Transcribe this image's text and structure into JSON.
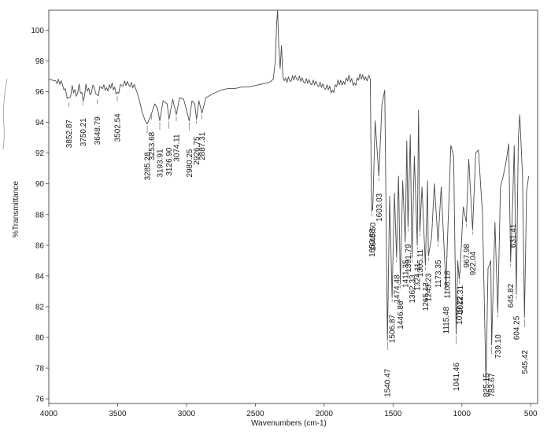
{
  "chart_data": {
    "type": "line",
    "xlabel": "Wavenumbers (cm-1)",
    "ylabel": "%Transmittance",
    "xlim": [
      4000,
      450
    ],
    "ylim": [
      75.7,
      101.3
    ],
    "x_reversed": true,
    "xticks": [
      4000,
      3500,
      3000,
      2500,
      2000,
      1500,
      1000,
      500
    ],
    "xtick_labels": [
      "4000",
      "3500",
      "3000",
      "2500",
      "2000",
      "1500",
      "1000",
      "500"
    ],
    "yticks": [
      76,
      78,
      80,
      82,
      84,
      86,
      88,
      90,
      92,
      94,
      96,
      98,
      100
    ],
    "ytick_labels": [
      "76",
      "78",
      "80",
      "82",
      "84",
      "86",
      "88",
      "90",
      "92",
      "94",
      "96",
      "98",
      "100"
    ],
    "grid": false,
    "series": [
      {
        "points": [
          [
            4000,
            96.8
          ],
          [
            3950,
            96.7
          ],
          [
            3900,
            96.5
          ],
          [
            3880,
            96.0
          ],
          [
            3852.87,
            95.4
          ],
          [
            3830,
            96.2
          ],
          [
            3800,
            95.8
          ],
          [
            3780,
            96.3
          ],
          [
            3750.21,
            95.5
          ],
          [
            3730,
            96.3
          ],
          [
            3700,
            95.9
          ],
          [
            3670,
            96.4
          ],
          [
            3648.79,
            95.6
          ],
          [
            3620,
            96.4
          ],
          [
            3580,
            96.1
          ],
          [
            3540,
            96.4
          ],
          [
            3502.54,
            95.8
          ],
          [
            3470,
            96.5
          ],
          [
            3420,
            96.5
          ],
          [
            3380,
            96.3
          ],
          [
            3350,
            95.7
          ],
          [
            3320,
            94.6
          ],
          [
            3300,
            94.1
          ],
          [
            3285.28,
            93.9
          ],
          [
            3270,
            94.2
          ],
          [
            3253.68,
            94.6
          ],
          [
            3230,
            95.2
          ],
          [
            3210,
            94.9
          ],
          [
            3193.91,
            94.1
          ],
          [
            3170,
            95.4
          ],
          [
            3140,
            95.2
          ],
          [
            3126.9,
            94.2
          ],
          [
            3100,
            95.5
          ],
          [
            3074.11,
            94.5
          ],
          [
            3050,
            95.6
          ],
          [
            3020,
            95.5
          ],
          [
            2980.25,
            94.1
          ],
          [
            2960,
            95.4
          ],
          [
            2940,
            95.2
          ],
          [
            2926.75,
            94.2
          ],
          [
            2910,
            95.4
          ],
          [
            2887.31,
            94.6
          ],
          [
            2860,
            95.6
          ],
          [
            2800,
            95.9
          ],
          [
            2750,
            96.1
          ],
          [
            2700,
            96.2
          ],
          [
            2650,
            96.2
          ],
          [
            2600,
            96.3
          ],
          [
            2550,
            96.3
          ],
          [
            2500,
            96.4
          ],
          [
            2450,
            96.5
          ],
          [
            2400,
            96.6
          ],
          [
            2370,
            96.8
          ],
          [
            2355,
            98.0
          ],
          [
            2345,
            100.5
          ],
          [
            2338,
            101.3
          ],
          [
            2330,
            99.0
          ],
          [
            2320,
            97.5
          ],
          [
            2310,
            99.0
          ],
          [
            2300,
            97.0
          ],
          [
            2280,
            96.7
          ],
          [
            2250,
            96.8
          ],
          [
            2200,
            96.9
          ],
          [
            2150,
            96.7
          ],
          [
            2100,
            96.6
          ],
          [
            2050,
            96.5
          ],
          [
            2000,
            96.3
          ],
          [
            1960,
            96.2
          ],
          [
            1940,
            95.9
          ],
          [
            1900,
            96.6
          ],
          [
            1860,
            96.5
          ],
          [
            1820,
            96.9
          ],
          [
            1780,
            96.4
          ],
          [
            1740,
            97.0
          ],
          [
            1700,
            96.8
          ],
          [
            1665,
            96.9
          ],
          [
            1658,
            89.6
          ],
          [
            1653.88,
            88.2
          ],
          [
            1646.5,
            88.6
          ],
          [
            1630,
            94.1
          ],
          [
            1603.03,
            90.5
          ],
          [
            1580,
            95.2
          ],
          [
            1560,
            96.1
          ],
          [
            1540.47,
            79.8
          ],
          [
            1525,
            89.2
          ],
          [
            1506.87,
            82.6
          ],
          [
            1490,
            89.4
          ],
          [
            1474.48,
            85.2
          ],
          [
            1460,
            90.5
          ],
          [
            1446.86,
            83.5
          ],
          [
            1430,
            90.2
          ],
          [
            1411.35,
            86.2
          ],
          [
            1400,
            92.8
          ],
          [
            1391.79,
            87.2
          ],
          [
            1375,
            93.2
          ],
          [
            1362.33,
            85.2
          ],
          [
            1345,
            91.8
          ],
          [
            1324.11,
            86.0
          ],
          [
            1315,
            94.8
          ],
          [
            1305.11,
            86.9
          ],
          [
            1290,
            89.8
          ],
          [
            1265.13,
            84.7
          ],
          [
            1250,
            90.2
          ],
          [
            1243.23,
            85.3
          ],
          [
            1220,
            86.5
          ],
          [
            1200,
            90.0
          ],
          [
            1173.35,
            86.2
          ],
          [
            1150,
            89.8
          ],
          [
            1115.48,
            83.2
          ],
          [
            1108.18,
            85.5
          ],
          [
            1080,
            92.5
          ],
          [
            1060,
            91.8
          ],
          [
            1041.46,
            80.2
          ],
          [
            1030,
            85.0
          ],
          [
            1019.22,
            83.8
          ],
          [
            1012.31,
            84.5
          ],
          [
            990,
            88.5
          ],
          [
            967.98,
            87.5
          ],
          [
            950,
            91.6
          ],
          [
            922.04,
            87.0
          ],
          [
            900,
            92.0
          ],
          [
            880,
            92.2
          ],
          [
            850,
            88.0
          ],
          [
            825.15,
            77.0
          ],
          [
            810,
            84.5
          ],
          [
            790,
            85.0
          ],
          [
            783.67,
            79.5
          ],
          [
            760,
            87.5
          ],
          [
            739.1,
            81.6
          ],
          [
            720,
            89.8
          ],
          [
            700,
            90.5
          ],
          [
            680,
            91.4
          ],
          [
            660,
            92.6
          ],
          [
            645.82,
            84.9
          ],
          [
            631.41,
            88.8
          ],
          [
            620,
            92.5
          ],
          [
            604.25,
            82.8
          ],
          [
            590,
            93.0
          ],
          [
            580,
            94.5
          ],
          [
            560,
            90.5
          ],
          [
            545.42,
            81.3
          ],
          [
            530,
            89.5
          ],
          [
            515,
            90.5
          ]
        ]
      }
    ],
    "peak_labels": [
      {
        "text": "3852.87",
        "wn": 3852.87,
        "y": 95.4,
        "pos": "low"
      },
      {
        "text": "3750.21",
        "wn": 3750.21,
        "y": 95.5,
        "pos": "low"
      },
      {
        "text": "3648.79",
        "wn": 3648.79,
        "y": 95.6,
        "pos": "low"
      },
      {
        "text": "3502.54",
        "wn": 3502.54,
        "y": 95.8,
        "pos": "low"
      },
      {
        "text": "3285.28",
        "wn": 3285.28,
        "y": 93.9,
        "pos": "deep"
      },
      {
        "text": "3253.68",
        "wn": 3253.68,
        "y": 94.6,
        "pos": "low"
      },
      {
        "text": "3193.91",
        "wn": 3193.91,
        "y": 94.1,
        "pos": "deep"
      },
      {
        "text": "3126.90",
        "wn": 3126.9,
        "y": 94.2,
        "pos": "deep"
      },
      {
        "text": "3074.11",
        "wn": 3074.11,
        "y": 94.5,
        "pos": "low"
      },
      {
        "text": "2980.25",
        "wn": 2980.25,
        "y": 94.1,
        "pos": "deep"
      },
      {
        "text": "2926.75",
        "wn": 2926.75,
        "y": 94.2,
        "pos": "mid"
      },
      {
        "text": "2887.31",
        "wn": 2887.31,
        "y": 94.6,
        "pos": "low"
      },
      {
        "text": "1653.88",
        "wn": 1653.88,
        "y": 88.2,
        "pos": "mid"
      },
      {
        "text": "1646.50",
        "wn": 1646.5,
        "y": 88.6,
        "pos": "mid"
      },
      {
        "text": "1603.03",
        "wn": 1603.03,
        "y": 90.5,
        "pos": "mid"
      },
      {
        "text": "1540.47",
        "wn": 1540.47,
        "y": 79.8,
        "pos": "deep"
      },
      {
        "text": "1506.87",
        "wn": 1506.87,
        "y": 82.6,
        "pos": "mid"
      },
      {
        "text": "1474.48",
        "wn": 1474.48,
        "y": 85.2,
        "pos": "mid"
      },
      {
        "text": "1446.86",
        "wn": 1446.86,
        "y": 83.5,
        "pos": "mid"
      },
      {
        "text": "1411.35",
        "wn": 1411.35,
        "y": 86.2,
        "pos": "mid"
      },
      {
        "text": "1391.79",
        "wn": 1391.79,
        "y": 87.2,
        "pos": "mid"
      },
      {
        "text": "1362.33",
        "wn": 1362.33,
        "y": 85.2,
        "pos": "mid"
      },
      {
        "text": "1324.11",
        "wn": 1324.11,
        "y": 86.0,
        "pos": "mid"
      },
      {
        "text": "1305.11",
        "wn": 1305.11,
        "y": 86.9,
        "pos": "mid"
      },
      {
        "text": "1265.13",
        "wn": 1265.13,
        "y": 84.7,
        "pos": "mid"
      },
      {
        "text": "1243.23",
        "wn": 1243.23,
        "y": 85.3,
        "pos": "mid"
      },
      {
        "text": "1173.35",
        "wn": 1173.35,
        "y": 86.2,
        "pos": "mid"
      },
      {
        "text": "1115.48",
        "wn": 1115.48,
        "y": 83.2,
        "pos": "mid"
      },
      {
        "text": "1108.18",
        "wn": 1108.18,
        "y": 85.5,
        "pos": "mid"
      },
      {
        "text": "1041.46",
        "wn": 1041.46,
        "y": 80.2,
        "pos": "deep"
      },
      {
        "text": "1019.22",
        "wn": 1019.22,
        "y": 83.8,
        "pos": "mid"
      },
      {
        "text": "1012.31",
        "wn": 1012.31,
        "y": 84.5,
        "pos": "mid"
      },
      {
        "text": "967.98",
        "wn": 967.98,
        "y": 87.5,
        "pos": "mid"
      },
      {
        "text": "922.04",
        "wn": 922.04,
        "y": 87.0,
        "pos": "mid"
      },
      {
        "text": "825.15",
        "wn": 825.15,
        "y": 77.0,
        "pos": "deep"
      },
      {
        "text": "783.67",
        "wn": 783.67,
        "y": 79.5,
        "pos": "deep"
      },
      {
        "text": "739.10",
        "wn": 739.1,
        "y": 81.6,
        "pos": "mid"
      },
      {
        "text": "645.82",
        "wn": 645.82,
        "y": 84.9,
        "pos": "mid"
      },
      {
        "text": "631.41",
        "wn": 631.41,
        "y": 88.8,
        "pos": "mid"
      },
      {
        "text": "604.25",
        "wn": 604.25,
        "y": 82.8,
        "pos": "mid"
      },
      {
        "text": "545.42",
        "wn": 545.42,
        "y": 81.3,
        "pos": "deep"
      }
    ]
  }
}
